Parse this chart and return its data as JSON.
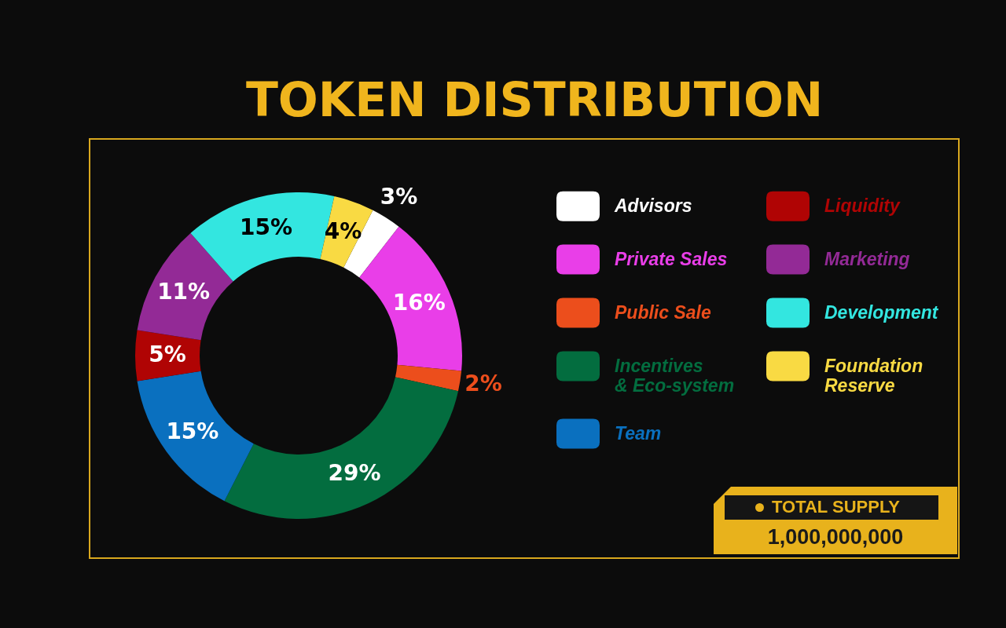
{
  "chart_data": {
    "type": "donut",
    "title": "TOKEN DISTRIBUTION",
    "categories": [
      "Advisors",
      "Private Sales",
      "Public Sale",
      "Incentives & Eco-system",
      "Team",
      "Liquidity",
      "Marketing",
      "Development",
      "Foundation Reserve"
    ],
    "values": [
      3,
      16,
      2,
      29,
      15,
      5,
      11,
      15,
      4
    ],
    "colors": [
      "#ffffff",
      "#e93ee8",
      "#ec4e1c",
      "#036d3f",
      "#0a70bf",
      "#b00404",
      "#932a96",
      "#33e6e0",
      "#f9da43"
    ],
    "value_labels": [
      "3%",
      "16%",
      "2%",
      "29%",
      "15%",
      "5%",
      "11%",
      "15%",
      "4%"
    ],
    "legend": "right",
    "annotations": [
      "TOTAL SUPPLY",
      "1,000,000,000"
    ]
  }
}
